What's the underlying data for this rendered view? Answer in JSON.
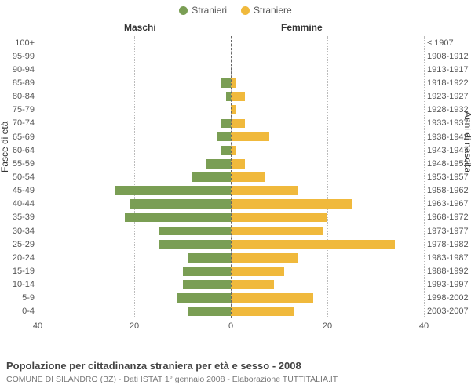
{
  "legend": {
    "male": {
      "label": "Stranieri",
      "color": "#7a9e54"
    },
    "female": {
      "label": "Straniere",
      "color": "#f0b93c"
    }
  },
  "headers": {
    "left": "Maschi",
    "right": "Femmine"
  },
  "axis": {
    "left_title": "Fasce di età",
    "right_title": "Anni di nascita",
    "xmax": 40,
    "xticks": [
      40,
      20,
      0,
      20,
      40
    ],
    "grid_color": "#bbbbbb",
    "center_color": "#666666"
  },
  "chart": {
    "type": "population-pyramid",
    "background_color": "#ffffff",
    "bar_male_color": "#7a9e54",
    "bar_female_color": "#f0b93c",
    "label_fontsize": 11,
    "header_fontsize": 12
  },
  "rows": [
    {
      "age": "100+",
      "birth": "≤ 1907",
      "m": 0,
      "f": 0
    },
    {
      "age": "95-99",
      "birth": "1908-1912",
      "m": 0,
      "f": 0
    },
    {
      "age": "90-94",
      "birth": "1913-1917",
      "m": 0,
      "f": 0
    },
    {
      "age": "85-89",
      "birth": "1918-1922",
      "m": 2,
      "f": 1
    },
    {
      "age": "80-84",
      "birth": "1923-1927",
      "m": 1,
      "f": 3
    },
    {
      "age": "75-79",
      "birth": "1928-1932",
      "m": 0,
      "f": 1
    },
    {
      "age": "70-74",
      "birth": "1933-1937",
      "m": 2,
      "f": 3
    },
    {
      "age": "65-69",
      "birth": "1938-1942",
      "m": 3,
      "f": 8
    },
    {
      "age": "60-64",
      "birth": "1943-1947",
      "m": 2,
      "f": 1
    },
    {
      "age": "55-59",
      "birth": "1948-1952",
      "m": 5,
      "f": 3
    },
    {
      "age": "50-54",
      "birth": "1953-1957",
      "m": 8,
      "f": 7
    },
    {
      "age": "45-49",
      "birth": "1958-1962",
      "m": 24,
      "f": 14
    },
    {
      "age": "40-44",
      "birth": "1963-1967",
      "m": 21,
      "f": 25
    },
    {
      "age": "35-39",
      "birth": "1968-1972",
      "m": 22,
      "f": 20
    },
    {
      "age": "30-34",
      "birth": "1973-1977",
      "m": 15,
      "f": 19
    },
    {
      "age": "25-29",
      "birth": "1978-1982",
      "m": 15,
      "f": 34
    },
    {
      "age": "20-24",
      "birth": "1983-1987",
      "m": 9,
      "f": 14
    },
    {
      "age": "15-19",
      "birth": "1988-1992",
      "m": 10,
      "f": 11
    },
    {
      "age": "10-14",
      "birth": "1993-1997",
      "m": 10,
      "f": 9
    },
    {
      "age": "5-9",
      "birth": "1998-2002",
      "m": 11,
      "f": 17
    },
    {
      "age": "0-4",
      "birth": "2003-2007",
      "m": 9,
      "f": 13
    }
  ],
  "caption": "Popolazione per cittadinanza straniera per età e sesso - 2008",
  "subcaption": "COMUNE DI SILANDRO (BZ) - Dati ISTAT 1° gennaio 2008 - Elaborazione TUTTITALIA.IT"
}
